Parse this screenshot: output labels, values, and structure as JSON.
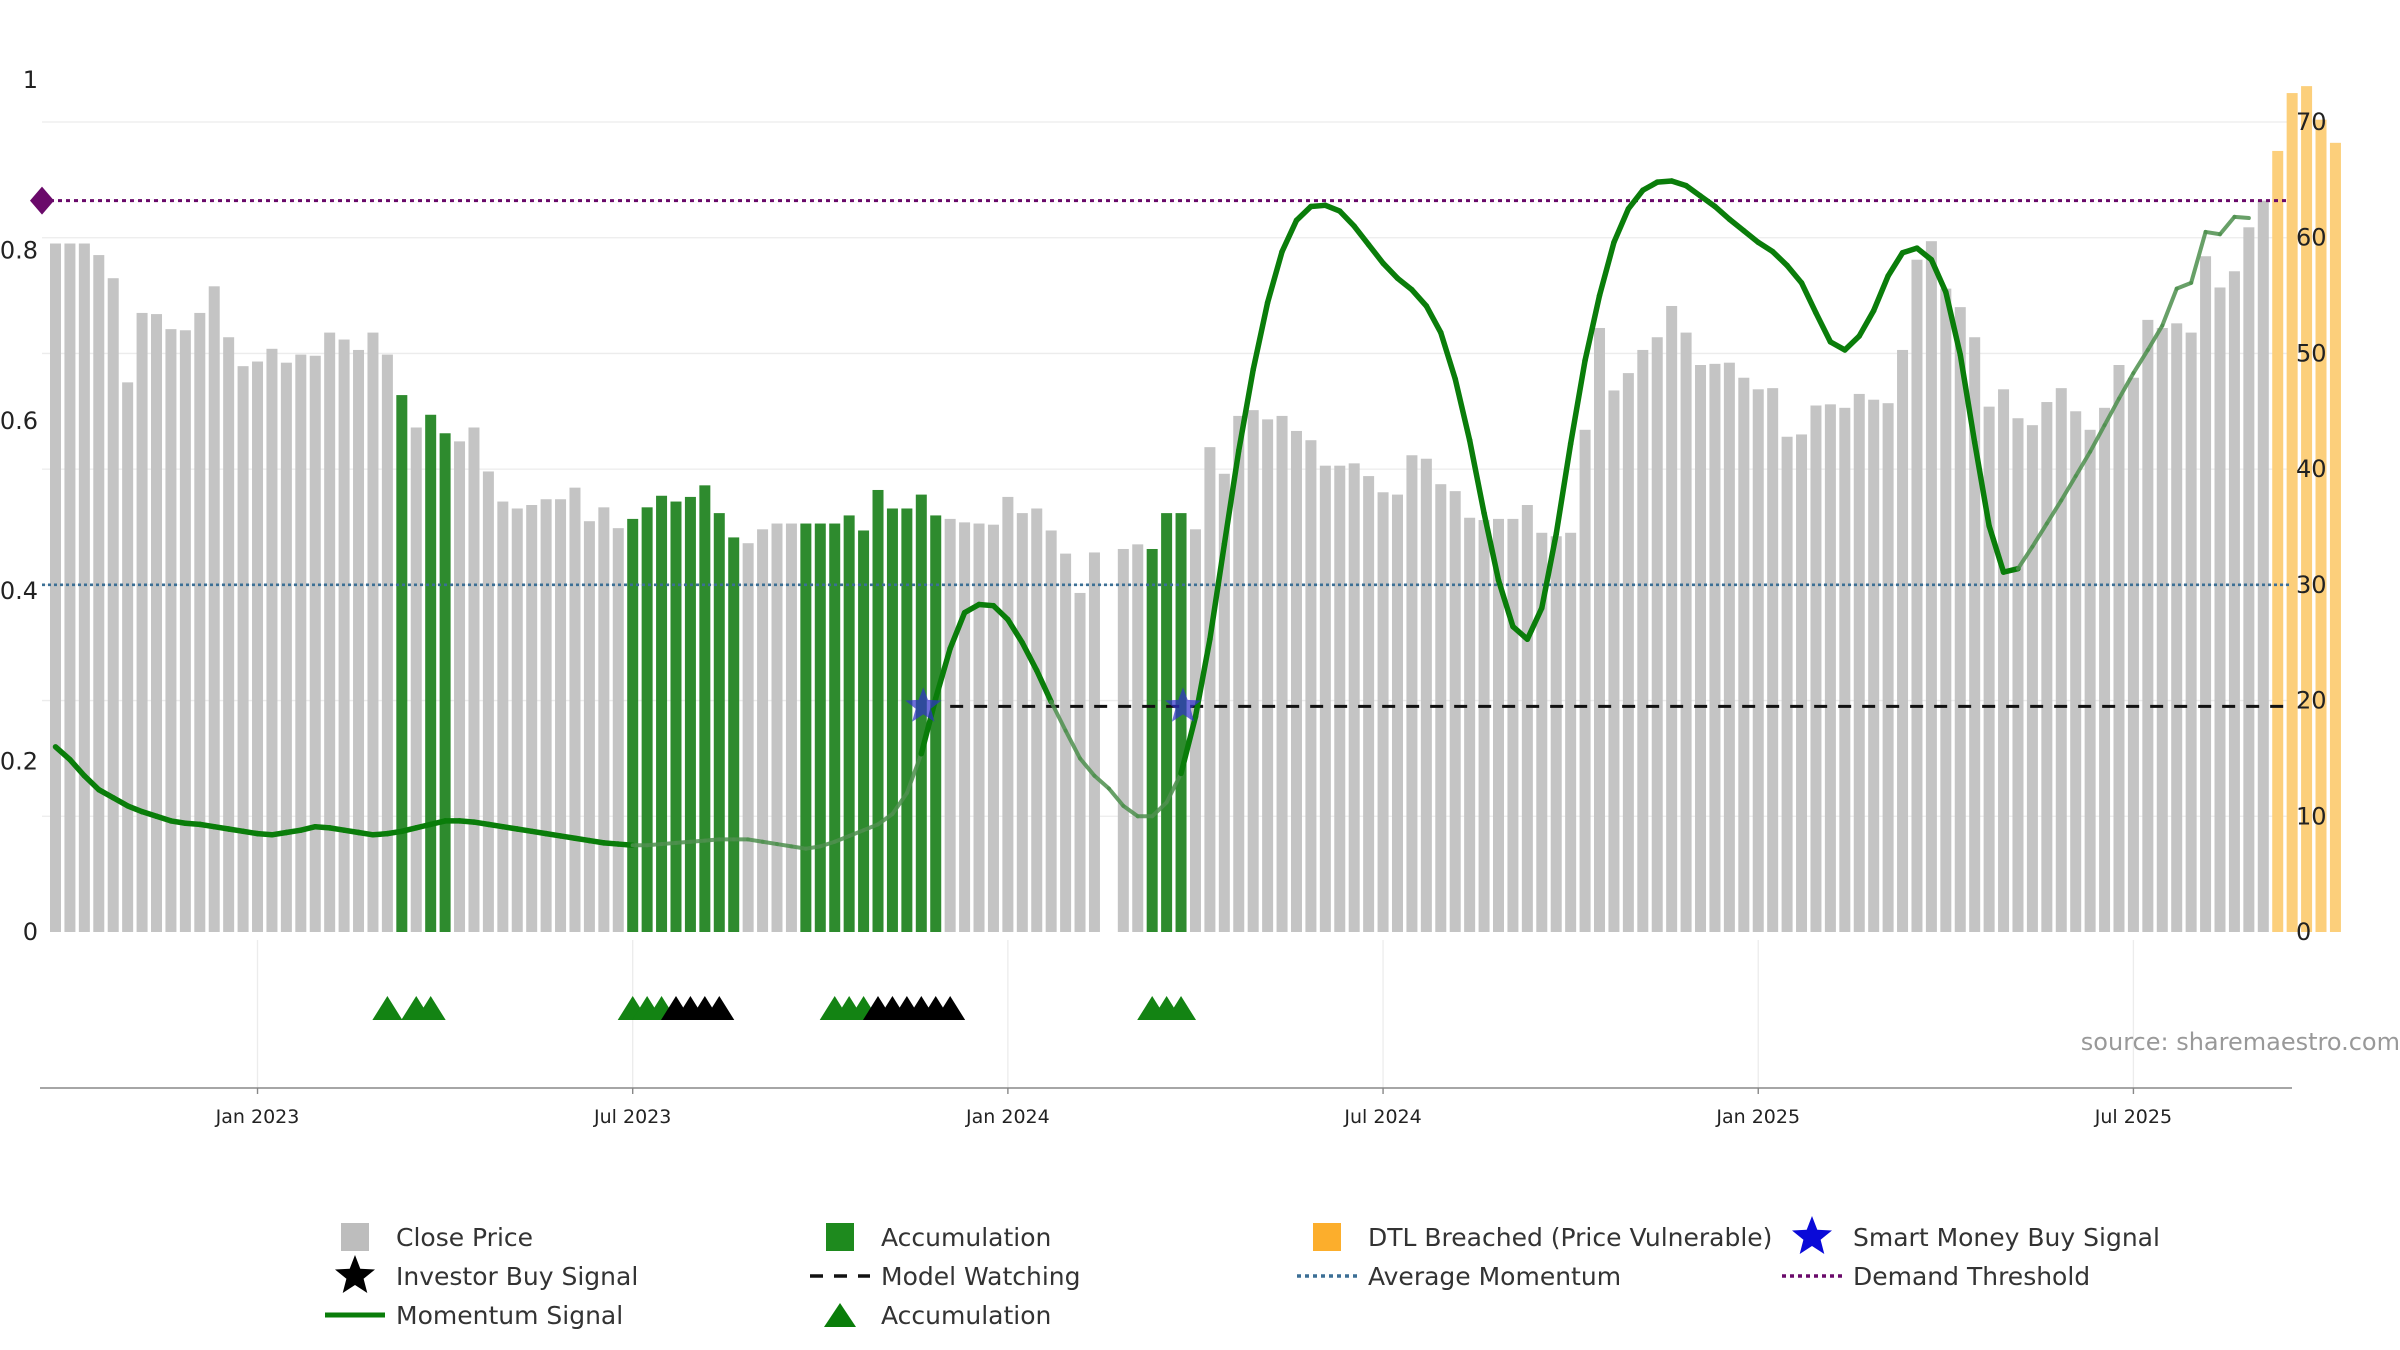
{
  "colors": {
    "close": "#c4c4c4",
    "accum": "#2e8b2e",
    "dtl": "#fccf7b",
    "momentum": "#0a7d0a",
    "smart": "#3030cc",
    "avg": "#3b6f95",
    "demand": "#6a0a6a",
    "watch": "#111111",
    "investor": "#000000"
  },
  "source_text": "source: sharemaestro.com",
  "chart_data": {
    "type": "bar",
    "title": "",
    "left_axis": {
      "ticks": [
        "0",
        "0.2",
        "0.4",
        "0.6",
        "0.8",
        "1"
      ],
      "values": [
        0,
        0.2,
        0.4,
        0.6,
        0.8,
        1
      ],
      "range": [
        0,
        1
      ]
    },
    "right_axis": {
      "ticks": [
        "0",
        "10",
        "20",
        "30",
        "40",
        "50",
        "60",
        "70"
      ],
      "values": [
        0,
        10,
        20,
        30,
        40,
        50,
        60,
        70
      ],
      "range": [
        0,
        77
      ]
    },
    "x_ticks": [
      {
        "label": "Jan 2023",
        "index": 14
      },
      {
        "label": "Jul 2023",
        "index": 40
      },
      {
        "label": "Jan 2024",
        "index": 66
      },
      {
        "label": "Jul 2024",
        "index": 92
      },
      {
        "label": "Jan 2025",
        "index": 118
      },
      {
        "label": "Jul 2025",
        "index": 144
      }
    ],
    "close_price": [
      59.5,
      59.5,
      59.5,
      58.5,
      56.5,
      47.5,
      53.5,
      53.4,
      52.1,
      52,
      53.5,
      55.8,
      51.4,
      48.9,
      49.3,
      50.4,
      49.2,
      49.9,
      49.8,
      51.8,
      51.2,
      50.3,
      51.8,
      49.9,
      46.4,
      43.6,
      44.7,
      43.1,
      42.4,
      43.6,
      39.8,
      37.2,
      36.6,
      36.9,
      37.4,
      37.4,
      38.4,
      35.5,
      36.7,
      34.9,
      35.7,
      36.7,
      37.7,
      37.2,
      37.6,
      38.6,
      36.2,
      34.1,
      33.6,
      34.8,
      35.3,
      35.3,
      35.3,
      35.3,
      35.3,
      36,
      34.7,
      38.2,
      36.6,
      36.6,
      37.8,
      36,
      35.7,
      35.4,
      35.3,
      35.2,
      37.6,
      36.2,
      36.6,
      34.7,
      32.7,
      29.3,
      32.8,
      0,
      33.1,
      33.5,
      33.1,
      36.2,
      36.2,
      34.8,
      41.9,
      39.6,
      44.6,
      45.1,
      44.3,
      44.6,
      43.3,
      42.5,
      40.3,
      40.3,
      40.5,
      39.4,
      38,
      37.8,
      41.2,
      40.9,
      38.7,
      38.1,
      35.8,
      35.6,
      35.7,
      35.7,
      36.9,
      34.5,
      34.2,
      34.5,
      43.4,
      52.2,
      46.8,
      48.3,
      50.3,
      51.4,
      54.1,
      51.8,
      49,
      49.1,
      49.2,
      47.9,
      46.9,
      47,
      42.8,
      43,
      45.5,
      45.6,
      45.3,
      46.5,
      46,
      45.7,
      50.3,
      58.1,
      59.7,
      55.6,
      54,
      51.4,
      45.4,
      46.9,
      44.4,
      43.8,
      45.8,
      47,
      45,
      43.4,
      45.3,
      49,
      47.9,
      52.9,
      52.2,
      52.6,
      51.8,
      58.4,
      55.7,
      57.1,
      60.9,
      63.2,
      67.5,
      72.5,
      73.1,
      70.2,
      68.2
    ],
    "accumulation_indices": [
      24,
      26,
      27,
      40,
      41,
      42,
      43,
      44,
      45,
      46,
      47,
      52,
      53,
      54,
      55,
      56,
      57,
      58,
      59,
      60,
      61,
      76,
      77,
      78
    ],
    "dtl_breached_indices": [
      154,
      155,
      156,
      157,
      158
    ],
    "momentum": [
      16,
      14.9,
      13.5,
      12.3,
      11.6,
      10.9,
      10.4,
      10,
      9.6,
      9.4,
      9.3,
      9.1,
      8.9,
      8.7,
      8.5,
      8.4,
      8.6,
      8.8,
      9.1,
      9,
      8.8,
      8.6,
      8.4,
      8.5,
      8.7,
      9,
      9.3,
      9.6,
      9.6,
      9.5,
      9.3,
      9.1,
      8.9,
      8.7,
      8.5,
      8.3,
      8.1,
      7.9,
      7.7,
      7.6,
      7.5,
      7.5,
      7.6,
      7.7,
      7.8,
      7.9,
      8,
      8,
      8,
      7.8,
      7.6,
      7.4,
      7.2,
      7.4,
      7.8,
      8.3,
      8.8,
      9.3,
      10.2,
      12,
      15.4,
      20.2,
      24.5,
      27.6,
      28.3,
      28.2,
      27,
      25,
      22.6,
      19.9,
      17.4,
      15,
      13.5,
      12.4,
      10.9,
      10,
      10,
      11.2,
      13.7,
      18.6,
      25.3,
      33.5,
      41.6,
      48.6,
      54.4,
      58.8,
      61.5,
      62.7,
      62.8,
      62.3,
      61,
      59.4,
      57.8,
      56.5,
      55.5,
      54.1,
      51.8,
      47.8,
      42.5,
      36.2,
      30.4,
      26.4,
      25.3,
      28,
      34.4,
      42.2,
      49.4,
      55,
      59.6,
      62.5,
      64.1,
      64.8,
      64.9,
      64.5,
      63.6,
      62.7,
      61.6,
      60.6,
      59.6,
      58.8,
      57.6,
      56.1,
      53.5,
      51,
      50.3,
      51.5,
      53.7,
      56.7,
      58.7,
      59.1,
      58.1,
      55.3,
      49.9,
      42.3,
      35.1,
      31.1,
      31.4,
      33.3,
      35.3,
      37.3,
      39.4,
      41.5,
      43.8,
      46.1,
      48.3,
      50.3,
      52.4,
      55.6,
      56.1,
      60.5,
      60.3,
      61.8,
      61.7
    ],
    "momentum_faded_ranges": [
      [
        40,
        60
      ],
      [
        69,
        78
      ],
      [
        136,
        152
      ]
    ],
    "smart_money_buy_signal": [
      {
        "index": 60,
        "value": 19.5
      },
      {
        "index": 78,
        "value": 19.5
      }
    ],
    "model_watching_level": 19.5,
    "model_watching_start_index": 62,
    "average_momentum": 30,
    "demand_threshold": 63.2,
    "accumulation_markers": [
      23,
      25,
      26,
      40,
      41,
      42,
      54,
      55,
      56,
      76,
      77,
      78
    ],
    "investor_buy_markers": [
      43,
      44,
      45,
      46,
      57,
      58,
      59,
      60,
      61,
      62
    ]
  },
  "legend": [
    {
      "label": "Close Price",
      "symbol": "square",
      "color": "#bdbdbd"
    },
    {
      "label": "Accumulation",
      "symbol": "square",
      "color": "#1e8a1e"
    },
    {
      "label": "DTL Breached (Price Vulnerable)",
      "symbol": "square",
      "color": "#fcae2c"
    },
    {
      "label": "Smart Money Buy Signal",
      "symbol": "star",
      "color": "#0a0ad8"
    },
    {
      "label": "Investor Buy Signal",
      "symbol": "star",
      "color": "#000000"
    },
    {
      "label": "Model Watching",
      "symbol": "dash",
      "color": "#111111"
    },
    {
      "label": "Average Momentum",
      "symbol": "dot",
      "color": "#3b6f95"
    },
    {
      "label": "Demand Threshold",
      "symbol": "dot",
      "color": "#6a0a6a"
    },
    {
      "label": "Momentum Signal",
      "symbol": "line",
      "color": "#0a7d0a"
    },
    {
      "label": "Accumulation",
      "symbol": "triangle",
      "color": "#0a7d0a"
    }
  ]
}
